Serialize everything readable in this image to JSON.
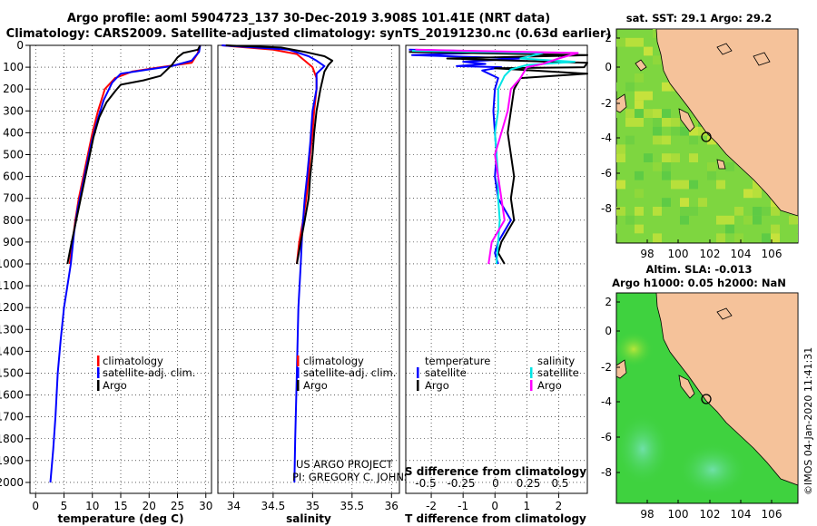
{
  "header": {
    "line1": "Argo profile: aoml 5904723_137 30-Dec-2019 3.908S 101.41E (NRT data)",
    "line2": "Climatology: CARS2009. Satellite-adjusted climatology: synTS_20191230.nc (0.63d earlier)"
  },
  "colors": {
    "climatology": "#ff0000",
    "satellite": "#0000ff",
    "argo": "#000000",
    "sat_salinity": "#00e5e5",
    "argo_salinity": "#ff00ff",
    "land": "#f5c29a",
    "ocean_map1": "#7ed640",
    "ocean_map2": "#3fd23f"
  },
  "legend": {
    "climatology": "climatology",
    "satellite": "satellite-adj. clim.",
    "argo": "Argo",
    "temperature_header": "temperature",
    "salinity_header": "salinity",
    "sat_short": "satellite",
    "argo_short": "Argo"
  },
  "credit": {
    "line1": "US ARGO PROJECT",
    "line2": "PI: GREGORY C. JOHNSON"
  },
  "timestamp": "©IMOS 04-Jan-2020 11:41:31",
  "chart_data": [
    {
      "type": "line",
      "name": "temperature-profile",
      "xlabel": "temperature (deg C)",
      "ylabel": "depth",
      "xlim": [
        -1,
        31
      ],
      "ylim": [
        0,
        2050
      ],
      "y_inverted": true,
      "xticks": [
        0,
        5,
        10,
        15,
        20,
        25,
        30
      ],
      "yticks": [
        0,
        100,
        200,
        300,
        400,
        500,
        600,
        700,
        800,
        900,
        1000,
        1100,
        1200,
        1300,
        1400,
        1500,
        1600,
        1700,
        1800,
        1900,
        2000
      ],
      "series": [
        {
          "name": "climatology",
          "color": "#ff0000",
          "points": [
            [
              29,
              0
            ],
            [
              28.5,
              40
            ],
            [
              27.5,
              80
            ],
            [
              22,
              100
            ],
            [
              17,
              120
            ],
            [
              14,
              150
            ],
            [
              12.2,
              200
            ],
            [
              11,
              300
            ],
            [
              10,
              400
            ],
            [
              9.2,
              500
            ],
            [
              8.4,
              600
            ],
            [
              7.6,
              700
            ],
            [
              7,
              800
            ],
            [
              6.5,
              900
            ],
            [
              6,
              1000
            ]
          ]
        },
        {
          "name": "satellite-adj. clim.",
          "color": "#0000ff",
          "points": [
            [
              29,
              0
            ],
            [
              28.8,
              30
            ],
            [
              27.5,
              70
            ],
            [
              24,
              95
            ],
            [
              20,
              110
            ],
            [
              15,
              130
            ],
            [
              13.5,
              170
            ],
            [
              12,
              250
            ],
            [
              10.8,
              350
            ],
            [
              9.8,
              450
            ],
            [
              9,
              550
            ],
            [
              8.2,
              650
            ],
            [
              7.4,
              750
            ],
            [
              6.8,
              850
            ],
            [
              6.2,
              1000
            ],
            [
              5.6,
              1100
            ],
            [
              5,
              1200
            ],
            [
              4.4,
              1350
            ],
            [
              3.9,
              1500
            ],
            [
              3.5,
              1700
            ],
            [
              3.1,
              1850
            ],
            [
              2.6,
              2000
            ]
          ]
        },
        {
          "name": "Argo",
          "color": "#000000",
          "points": [
            [
              29,
              0
            ],
            [
              28.6,
              20
            ],
            [
              26,
              35
            ],
            [
              25,
              55
            ],
            [
              24,
              90
            ],
            [
              22,
              140
            ],
            [
              19,
              160
            ],
            [
              15,
              180
            ],
            [
              14,
              210
            ],
            [
              12.5,
              260
            ],
            [
              11.2,
              330
            ],
            [
              10.2,
              420
            ],
            [
              9.4,
              520
            ],
            [
              8.6,
              620
            ],
            [
              7.8,
              720
            ],
            [
              7,
              820
            ],
            [
              6.2,
              920
            ],
            [
              5.6,
              1000
            ]
          ]
        }
      ]
    },
    {
      "type": "line",
      "name": "salinity-profile",
      "xlabel": "salinity",
      "xlim": [
        33.8,
        36.1
      ],
      "ylim": [
        0,
        2050
      ],
      "y_inverted": true,
      "xticks": [
        "34",
        "34.5",
        "35",
        "35.5",
        "36"
      ],
      "series": [
        {
          "name": "climatology",
          "color": "#ff0000",
          "points": [
            [
              33.85,
              0
            ],
            [
              34.5,
              20
            ],
            [
              34.8,
              40
            ],
            [
              34.9,
              70
            ],
            [
              35,
              100
            ],
            [
              35.05,
              150
            ],
            [
              35.05,
              200
            ],
            [
              35.02,
              300
            ],
            [
              35,
              400
            ],
            [
              34.97,
              500
            ],
            [
              34.95,
              600
            ],
            [
              34.92,
              700
            ],
            [
              34.88,
              800
            ],
            [
              34.83,
              900
            ],
            [
              34.8,
              1000
            ]
          ]
        },
        {
          "name": "satellite-adj. clim.",
          "color": "#0000ff",
          "points": [
            [
              33.85,
              0
            ],
            [
              34.7,
              20
            ],
            [
              34.95,
              50
            ],
            [
              35.05,
              70
            ],
            [
              35.15,
              95
            ],
            [
              35.05,
              130
            ],
            [
              35.05,
              200
            ],
            [
              35,
              300
            ],
            [
              34.97,
              450
            ],
            [
              34.93,
              600
            ],
            [
              34.9,
              700
            ],
            [
              34.87,
              850
            ],
            [
              34.85,
              1000
            ],
            [
              34.82,
              1200
            ],
            [
              34.8,
              1500
            ],
            [
              34.78,
              1800
            ],
            [
              34.77,
              2000
            ]
          ]
        },
        {
          "name": "Argo",
          "color": "#000000",
          "points": [
            [
              33.9,
              0
            ],
            [
              34.6,
              10
            ],
            [
              34.9,
              30
            ],
            [
              35.15,
              50
            ],
            [
              35.25,
              70
            ],
            [
              35.2,
              90
            ],
            [
              35.15,
              120
            ],
            [
              35.1,
              200
            ],
            [
              35.05,
              300
            ],
            [
              35.02,
              400
            ],
            [
              35,
              500
            ],
            [
              34.97,
              600
            ],
            [
              34.95,
              700
            ],
            [
              34.9,
              800
            ],
            [
              34.85,
              900
            ],
            [
              34.8,
              1000
            ]
          ]
        }
      ]
    },
    {
      "type": "line",
      "name": "difference-profile",
      "xlabel": "T difference from climatology",
      "x2label": "S difference from climatology",
      "xlim": [
        -2.8,
        2.9
      ],
      "ylim": [
        0,
        2050
      ],
      "y_inverted": true,
      "xticks": [
        "-2",
        "-1",
        "0",
        "1",
        "2"
      ],
      "x2ticks": [
        "-0.5",
        "-0.25",
        "0",
        "0.25",
        "0.5"
      ],
      "series": [
        {
          "name": "temperature satellite",
          "color": "#0000ff",
          "points": [
            [
              -2.7,
              20
            ],
            [
              0.3,
              30
            ],
            [
              -2.6,
              45
            ],
            [
              0.8,
              60
            ],
            [
              -1,
              75
            ],
            [
              -0.3,
              85
            ],
            [
              -1.2,
              95
            ],
            [
              0.2,
              100
            ],
            [
              -0.4,
              115
            ],
            [
              0.1,
              150
            ],
            [
              0,
              200
            ],
            [
              -0.05,
              300
            ],
            [
              0,
              400
            ],
            [
              0.05,
              500
            ],
            [
              0,
              600
            ],
            [
              0.1,
              700
            ],
            [
              0.3,
              750
            ],
            [
              0.5,
              800
            ],
            [
              0.3,
              850
            ],
            [
              0.1,
              900
            ],
            [
              0,
              950
            ],
            [
              0.1,
              1000
            ]
          ]
        },
        {
          "name": "temperature Argo",
          "color": "#000000",
          "points": [
            [
              -2.7,
              30
            ],
            [
              2.9,
              45
            ],
            [
              -1.5,
              60
            ],
            [
              2.9,
              80
            ],
            [
              2.8,
              100
            ],
            [
              0,
              105
            ],
            [
              2.9,
              130
            ],
            [
              1.8,
              140
            ],
            [
              0.8,
              150
            ],
            [
              0.6,
              200
            ],
            [
              0.5,
              300
            ],
            [
              0.4,
              400
            ],
            [
              0.5,
              500
            ],
            [
              0.6,
              600
            ],
            [
              0.5,
              700
            ],
            [
              0.6,
              800
            ],
            [
              0.4,
              850
            ],
            [
              0.2,
              900
            ],
            [
              0.1,
              950
            ],
            [
              0.3,
              1000
            ]
          ]
        },
        {
          "name": "salinity satellite",
          "color": "#00e5e5",
          "points": [
            [
              -2.6,
              25
            ],
            [
              1.5,
              35
            ],
            [
              0.8,
              60
            ],
            [
              2.5,
              75
            ],
            [
              1,
              90
            ],
            [
              0.5,
              110
            ],
            [
              0.3,
              140
            ],
            [
              0.1,
              200
            ],
            [
              0.1,
              300
            ],
            [
              0,
              400
            ],
            [
              0.05,
              500
            ],
            [
              0.1,
              600
            ],
            [
              0.1,
              700
            ],
            [
              0.15,
              800
            ],
            [
              0.1,
              900
            ],
            [
              0.05,
              1000
            ]
          ]
        },
        {
          "name": "salinity Argo",
          "color": "#ff00ff",
          "points": [
            [
              -2.5,
              20
            ],
            [
              2.6,
              35
            ],
            [
              2,
              60
            ],
            [
              1.5,
              85
            ],
            [
              1,
              100
            ],
            [
              0.8,
              150
            ],
            [
              0.5,
              200
            ],
            [
              0.4,
              300
            ],
            [
              0.2,
              400
            ],
            [
              0,
              500
            ],
            [
              0.1,
              600
            ],
            [
              0.2,
              700
            ],
            [
              0.3,
              800
            ],
            [
              -0.1,
              900
            ],
            [
              -0.2,
              1000
            ]
          ]
        }
      ]
    }
  ],
  "maps": [
    {
      "title": "sat. SST: 29.1 Argo: 29.2",
      "xticks": [
        "98",
        "100",
        "102",
        "104",
        "106"
      ],
      "yticks": [
        "2",
        "0",
        "-2",
        "-4",
        "-6",
        "-8"
      ]
    },
    {
      "title_line1": "Altim. SLA: -0.013",
      "title_line2": "Argo h1000: 0.05 h2000: NaN",
      "xticks": [
        "98",
        "100",
        "102",
        "104",
        "106"
      ],
      "yticks": [
        "2",
        "0",
        "-2",
        "-4",
        "-6",
        "-8"
      ]
    }
  ]
}
